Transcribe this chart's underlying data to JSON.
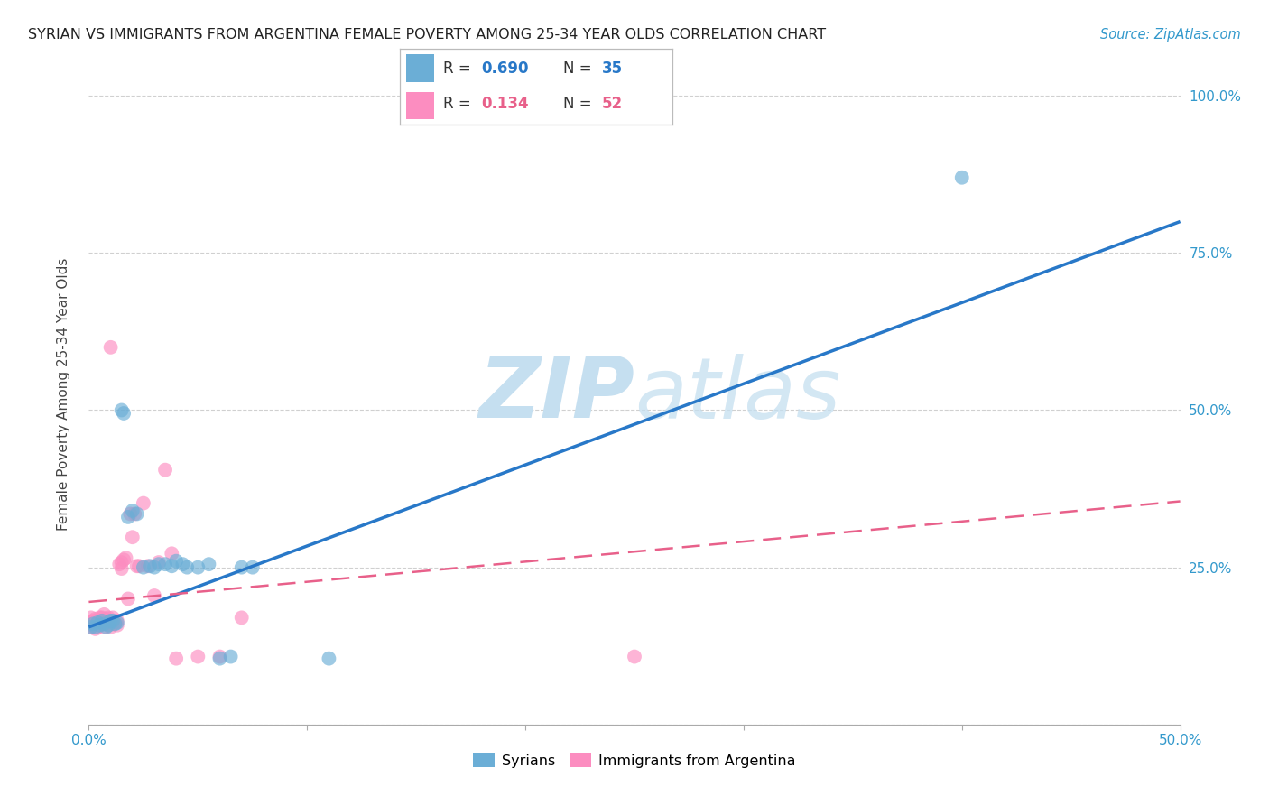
{
  "title": "SYRIAN VS IMMIGRANTS FROM ARGENTINA FEMALE POVERTY AMONG 25-34 YEAR OLDS CORRELATION CHART",
  "source": "Source: ZipAtlas.com",
  "ylabel": "Female Poverty Among 25-34 Year Olds",
  "xlim": [
    0.0,
    0.5
  ],
  "ylim": [
    0.0,
    1.05
  ],
  "syrian_R": 0.69,
  "syrian_N": 35,
  "argentina_R": 0.134,
  "argentina_N": 52,
  "syrian_color": "#6baed6",
  "argentina_color": "#fc8dc0",
  "syrian_line_color": "#2878c8",
  "argentina_line_color": "#e8608a",
  "watermark_color": "#c5dff0",
  "background_color": "#ffffff",
  "syrian_x": [
    0.001,
    0.002,
    0.003,
    0.004,
    0.005,
    0.006,
    0.007,
    0.008,
    0.009,
    0.01,
    0.011,
    0.012,
    0.013,
    0.015,
    0.016,
    0.018,
    0.02,
    0.022,
    0.025,
    0.028,
    0.03,
    0.032,
    0.035,
    0.038,
    0.04,
    0.043,
    0.045,
    0.05,
    0.055,
    0.06,
    0.065,
    0.07,
    0.075,
    0.11,
    0.4
  ],
  "syrian_y": [
    0.155,
    0.16,
    0.155,
    0.162,
    0.158,
    0.165,
    0.16,
    0.155,
    0.158,
    0.165,
    0.165,
    0.16,
    0.162,
    0.5,
    0.495,
    0.33,
    0.34,
    0.335,
    0.25,
    0.252,
    0.25,
    0.255,
    0.255,
    0.252,
    0.26,
    0.255,
    0.25,
    0.25,
    0.255,
    0.105,
    0.108,
    0.25,
    0.25,
    0.105,
    0.87
  ],
  "argentina_x": [
    0.001,
    0.001,
    0.001,
    0.002,
    0.002,
    0.003,
    0.003,
    0.003,
    0.004,
    0.004,
    0.005,
    0.005,
    0.005,
    0.006,
    0.006,
    0.007,
    0.007,
    0.007,
    0.008,
    0.008,
    0.009,
    0.009,
    0.01,
    0.01,
    0.01,
    0.011,
    0.011,
    0.012,
    0.013,
    0.013,
    0.014,
    0.015,
    0.015,
    0.016,
    0.017,
    0.018,
    0.019,
    0.02,
    0.021,
    0.022,
    0.023,
    0.025,
    0.027,
    0.03,
    0.032,
    0.035,
    0.038,
    0.04,
    0.05,
    0.06,
    0.07,
    0.25
  ],
  "argentina_y": [
    0.155,
    0.162,
    0.17,
    0.158,
    0.165,
    0.152,
    0.16,
    0.168,
    0.155,
    0.162,
    0.158,
    0.165,
    0.17,
    0.162,
    0.17,
    0.155,
    0.165,
    0.175,
    0.16,
    0.168,
    0.162,
    0.17,
    0.155,
    0.165,
    0.6,
    0.16,
    0.17,
    0.162,
    0.158,
    0.165,
    0.255,
    0.248,
    0.258,
    0.262,
    0.265,
    0.2,
    0.335,
    0.298,
    0.335,
    0.252,
    0.252,
    0.352,
    0.252,
    0.205,
    0.258,
    0.405,
    0.272,
    0.105,
    0.108,
    0.108,
    0.17,
    0.108
  ],
  "syrian_line_x0": 0.0,
  "syrian_line_y0": 0.155,
  "syrian_line_x1": 0.5,
  "syrian_line_y1": 0.8,
  "argentina_line_x0": 0.0,
  "argentina_line_y0": 0.195,
  "argentina_line_x1": 0.5,
  "argentina_line_y1": 0.355
}
